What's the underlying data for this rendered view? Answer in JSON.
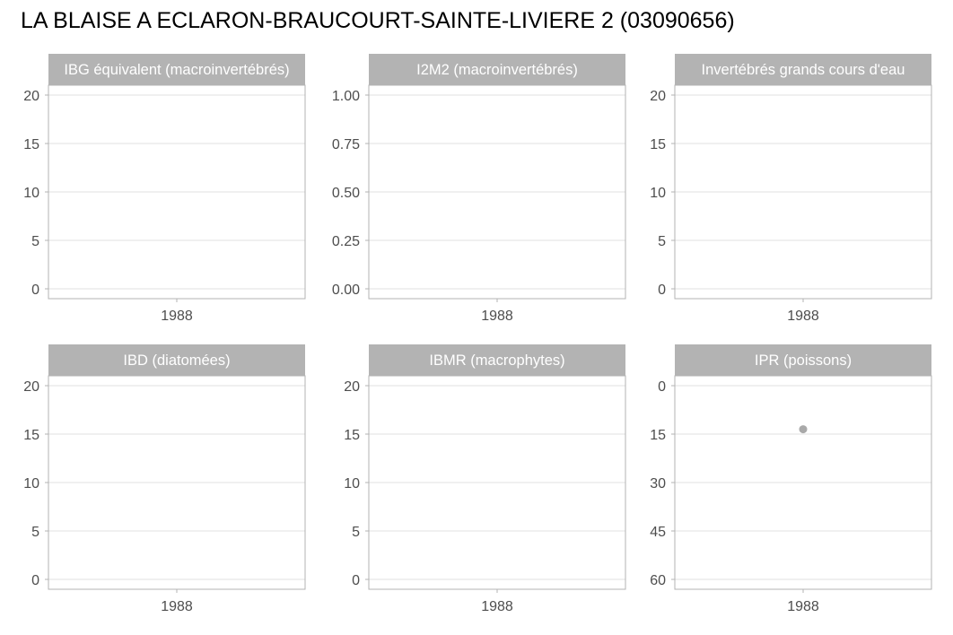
{
  "title": "LA BLAISE A ECLARON-BRAUCOURT-SAINTE-LIVIERE 2 (03090656)",
  "colors": {
    "strip_bg": "#b3b3b3",
    "strip_text": "#ffffff",
    "panel_border": "#b3b3b3",
    "grid": "#e0e0e0",
    "tick_text": "#4d4d4d",
    "point": "#a9a9a9"
  },
  "chart_data": [
    {
      "type": "scatter",
      "title": "IBG équivalent (macroinvertébrés)",
      "x_ticks": [
        "1988"
      ],
      "y_ticks": [
        "0",
        "5",
        "10",
        "15",
        "20"
      ],
      "ylim": [
        0,
        20
      ],
      "y_reversed": false,
      "grid": true,
      "points": []
    },
    {
      "type": "scatter",
      "title": "I2M2 (macroinvertébrés)",
      "x_ticks": [
        "1988"
      ],
      "y_ticks": [
        "0.00",
        "0.25",
        "0.50",
        "0.75",
        "1.00"
      ],
      "ylim": [
        0,
        1
      ],
      "y_reversed": false,
      "grid": true,
      "points": []
    },
    {
      "type": "scatter",
      "title": "Invertébrés grands cours d'eau",
      "x_ticks": [
        "1988"
      ],
      "y_ticks": [
        "0",
        "5",
        "10",
        "15",
        "20"
      ],
      "ylim": [
        0,
        20
      ],
      "y_reversed": false,
      "grid": true,
      "points": []
    },
    {
      "type": "scatter",
      "title": "IBD (diatomées)",
      "x_ticks": [
        "1988"
      ],
      "y_ticks": [
        "0",
        "5",
        "10",
        "15",
        "20"
      ],
      "ylim": [
        0,
        20
      ],
      "y_reversed": false,
      "grid": true,
      "points": []
    },
    {
      "type": "scatter",
      "title": "IBMR (macrophytes)",
      "x_ticks": [
        "1988"
      ],
      "y_ticks": [
        "0",
        "5",
        "10",
        "15",
        "20"
      ],
      "ylim": [
        0,
        20
      ],
      "y_reversed": false,
      "grid": true,
      "points": []
    },
    {
      "type": "scatter",
      "title": "IPR (poissons)",
      "x_ticks": [
        "1988"
      ],
      "y_ticks": [
        "0",
        "15",
        "30",
        "45",
        "60"
      ],
      "ylim": [
        0,
        60
      ],
      "y_reversed": true,
      "grid": true,
      "points": [
        {
          "x": "1988",
          "y": 13.5
        }
      ]
    }
  ]
}
